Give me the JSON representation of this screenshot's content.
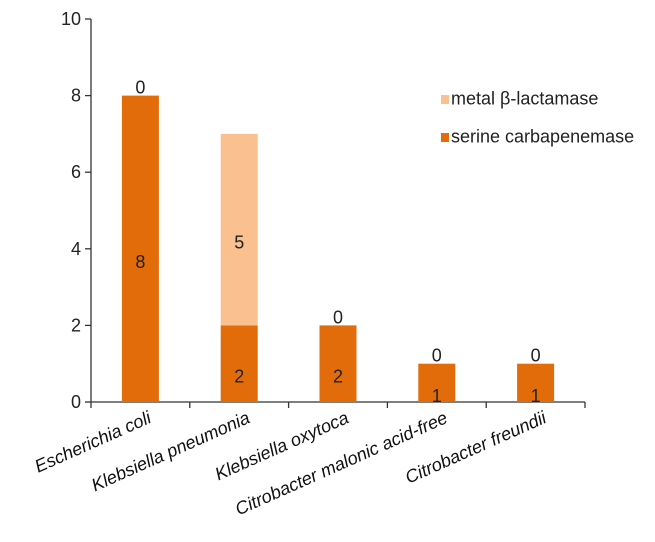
{
  "chart_data": {
    "type": "bar",
    "stacked": true,
    "categories": [
      "Escherichia coli",
      "Klebsiella pneumonia",
      "Klebsiella oxytoca",
      "Citrobacter malonic acid-free",
      "Citrobacter freundii"
    ],
    "series": [
      {
        "name": "serine carbapenemase",
        "values": [
          8,
          2,
          2,
          1,
          1
        ],
        "color": "#E36C0A"
      },
      {
        "name": "metal β-lactamase",
        "values": [
          0,
          5,
          0,
          0,
          0
        ],
        "color": "#FAC090"
      }
    ],
    "ylim": [
      0,
      10
    ],
    "yticks": [
      "0",
      "2",
      "4",
      "6",
      "8",
      "10"
    ],
    "title": "",
    "xlabel": "",
    "ylabel": "",
    "legend_position": "top-right",
    "grid": false
  }
}
